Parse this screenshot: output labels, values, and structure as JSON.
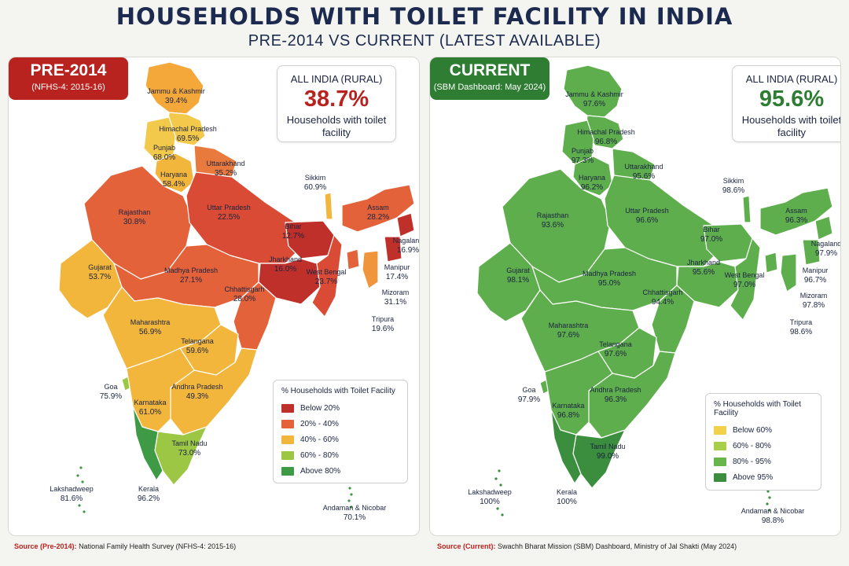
{
  "title": "HOUSEHOLDS WITH TOILET FACILITY IN INDIA",
  "subtitle": "PRE-2014 VS CURRENT (LATEST AVAILABLE)",
  "panels": [
    {
      "id": "pre2014",
      "badge_title": "PRE-2014",
      "badge_sub": "(NFHS-4: 2015-16)",
      "stat_label": "ALL INDIA (RURAL)",
      "stat_value": "38.7%",
      "stat_caption": "Households with toilet facility",
      "legend_title": "% Households with Toilet Facility",
      "legend": [
        {
          "label": "Below 20%",
          "color": "#c0302a"
        },
        {
          "label": "20% - 40%",
          "color": "#e3623a"
        },
        {
          "label": "40% - 60%",
          "color": "#f2b63c"
        },
        {
          "label": "60% - 80%",
          "color": "#9cc745"
        },
        {
          "label": "Above 80%",
          "color": "#3f9a45"
        }
      ],
      "states": [
        {
          "name": "Jammu & Kashmir",
          "value": "39.4%",
          "color": "#f5a83a"
        },
        {
          "name": "Himachal Pradesh",
          "value": "69.5%",
          "color": "#f2c94a"
        },
        {
          "name": "Punjab",
          "value": "68.0%",
          "color": "#f2c94a"
        },
        {
          "name": "Haryana",
          "value": "58.4%",
          "color": "#f2b63c"
        },
        {
          "name": "Uttarakhand",
          "value": "35.2%",
          "color": "#e87a3e"
        },
        {
          "name": "Rajasthan",
          "value": "30.8%",
          "color": "#e3623a"
        },
        {
          "name": "Uttar Pradesh",
          "value": "22.5%",
          "color": "#d94b34"
        },
        {
          "name": "Bihar",
          "value": "12.7%",
          "color": "#c0302a"
        },
        {
          "name": "Jharkhand",
          "value": "16.0%",
          "color": "#c0302a"
        },
        {
          "name": "West Bengal",
          "value": "23.7%",
          "color": "#d94b34"
        },
        {
          "name": "Sikkim",
          "value": "60.9%",
          "color": "#f2b63c"
        },
        {
          "name": "Assam",
          "value": "28.2%",
          "color": "#e3623a"
        },
        {
          "name": "Nagaland",
          "value": "16.9%",
          "color": "#c0302a"
        },
        {
          "name": "Manipur",
          "value": "17.4%",
          "color": "#c0302a"
        },
        {
          "name": "Mizoram",
          "value": "31.1%",
          "color": "#f0953c"
        },
        {
          "name": "Tripura",
          "value": "19.6%",
          "color": "#e3623a"
        },
        {
          "name": "Gujarat",
          "value": "53.7%",
          "color": "#f2b63c"
        },
        {
          "name": "Madhya Pradesh",
          "value": "27.1%",
          "color": "#e3623a"
        },
        {
          "name": "Chhattisgarh",
          "value": "28.0%",
          "color": "#e3623a"
        },
        {
          "name": "Maharashtra",
          "value": "56.9%",
          "color": "#f2b63c"
        },
        {
          "name": "Telangana",
          "value": "59.6%",
          "color": "#f2b63c"
        },
        {
          "name": "Goa",
          "value": "75.9%",
          "color": "#9cc745"
        },
        {
          "name": "Andhra Pradesh",
          "value": "49.3%",
          "color": "#f2b63c"
        },
        {
          "name": "Karnataka",
          "value": "61.0%",
          "color": "#f2b63c"
        },
        {
          "name": "Tamil Nadu",
          "value": "73.0%",
          "color": "#9cc745"
        },
        {
          "name": "Kerala",
          "value": "96.2%",
          "color": "#3f9a45"
        },
        {
          "name": "Lakshadweep",
          "value": "81.6%",
          "color": "#3f9a45"
        },
        {
          "name": "Andaman & Nicobar",
          "value": "70.1%",
          "color": "#3f9a45"
        }
      ],
      "source_label": "Source (Pre-2014):",
      "source_text": "National Family Health Survey (NFHS-4: 2015-16)"
    },
    {
      "id": "current",
      "badge_title": "CURRENT",
      "badge_sub": "(SBM Dashboard: May 2024)",
      "stat_label": "ALL INDIA (RURAL)",
      "stat_value": "95.6%",
      "stat_caption": "Households with toilet facility",
      "legend_title": "% Households with Toilet Facility",
      "legend": [
        {
          "label": "Below 60%",
          "color": "#f2d04a"
        },
        {
          "label": "60% - 80%",
          "color": "#a9cf4a"
        },
        {
          "label": "80% - 95%",
          "color": "#68b54c"
        },
        {
          "label": "Above 95%",
          "color": "#3a8e3e"
        }
      ],
      "states": [
        {
          "name": "Jammu & Kashmir",
          "value": "97.6%",
          "color": "#5fae4d"
        },
        {
          "name": "Himachal Pradesh",
          "value": "96.8%",
          "color": "#5fae4d"
        },
        {
          "name": "Punjab",
          "value": "97.3%",
          "color": "#5fae4d"
        },
        {
          "name": "Haryana",
          "value": "96.2%",
          "color": "#5fae4d"
        },
        {
          "name": "Uttarakhand",
          "value": "95.6%",
          "color": "#5fae4d"
        },
        {
          "name": "Rajasthan",
          "value": "93.6%",
          "color": "#5fae4d"
        },
        {
          "name": "Uttar Pradesh",
          "value": "96.6%",
          "color": "#5fae4d"
        },
        {
          "name": "Bihar",
          "value": "97.0%",
          "color": "#5fae4d"
        },
        {
          "name": "Jharkhand",
          "value": "95.6%",
          "color": "#5fae4d"
        },
        {
          "name": "West Bengal",
          "value": "97.0%",
          "color": "#5fae4d"
        },
        {
          "name": "Sikkim",
          "value": "98.6%",
          "color": "#5fae4d"
        },
        {
          "name": "Assam",
          "value": "96.3%",
          "color": "#5fae4d"
        },
        {
          "name": "Nagaland",
          "value": "97.9%",
          "color": "#5fae4d"
        },
        {
          "name": "Manipur",
          "value": "96.7%",
          "color": "#5fae4d"
        },
        {
          "name": "Mizoram",
          "value": "97.8%",
          "color": "#5fae4d"
        },
        {
          "name": "Tripura",
          "value": "98.6%",
          "color": "#5fae4d"
        },
        {
          "name": "Gujarat",
          "value": "98.1%",
          "color": "#5fae4d"
        },
        {
          "name": "Madhya Pradesh",
          "value": "95.0%",
          "color": "#5fae4d"
        },
        {
          "name": "Chhattisgarh",
          "value": "94.4%",
          "color": "#5fae4d"
        },
        {
          "name": "Maharashtra",
          "value": "97.6%",
          "color": "#5fae4d"
        },
        {
          "name": "Telangana",
          "value": "97.6%",
          "color": "#5fae4d"
        },
        {
          "name": "Goa",
          "value": "97.9%",
          "color": "#5fae4d"
        },
        {
          "name": "Andhra Pradesh",
          "value": "96.3%",
          "color": "#5fae4d"
        },
        {
          "name": "Karnataka",
          "value": "96.8%",
          "color": "#5fae4d"
        },
        {
          "name": "Tamil Nadu",
          "value": "99.0%",
          "color": "#3a8e3e"
        },
        {
          "name": "Kerala",
          "value": "100%",
          "color": "#3a8e3e"
        },
        {
          "name": "Lakshadweep",
          "value": "100%",
          "color": "#3a8e3e"
        },
        {
          "name": "Andaman & Nicobar",
          "value": "98.8%",
          "color": "#3a8e3e"
        }
      ],
      "source_label": "Source (Current):",
      "source_text": "Swachh Bharat Mission (SBM) Dashboard, Ministry of Jal Shakti (May 2024)"
    }
  ]
}
